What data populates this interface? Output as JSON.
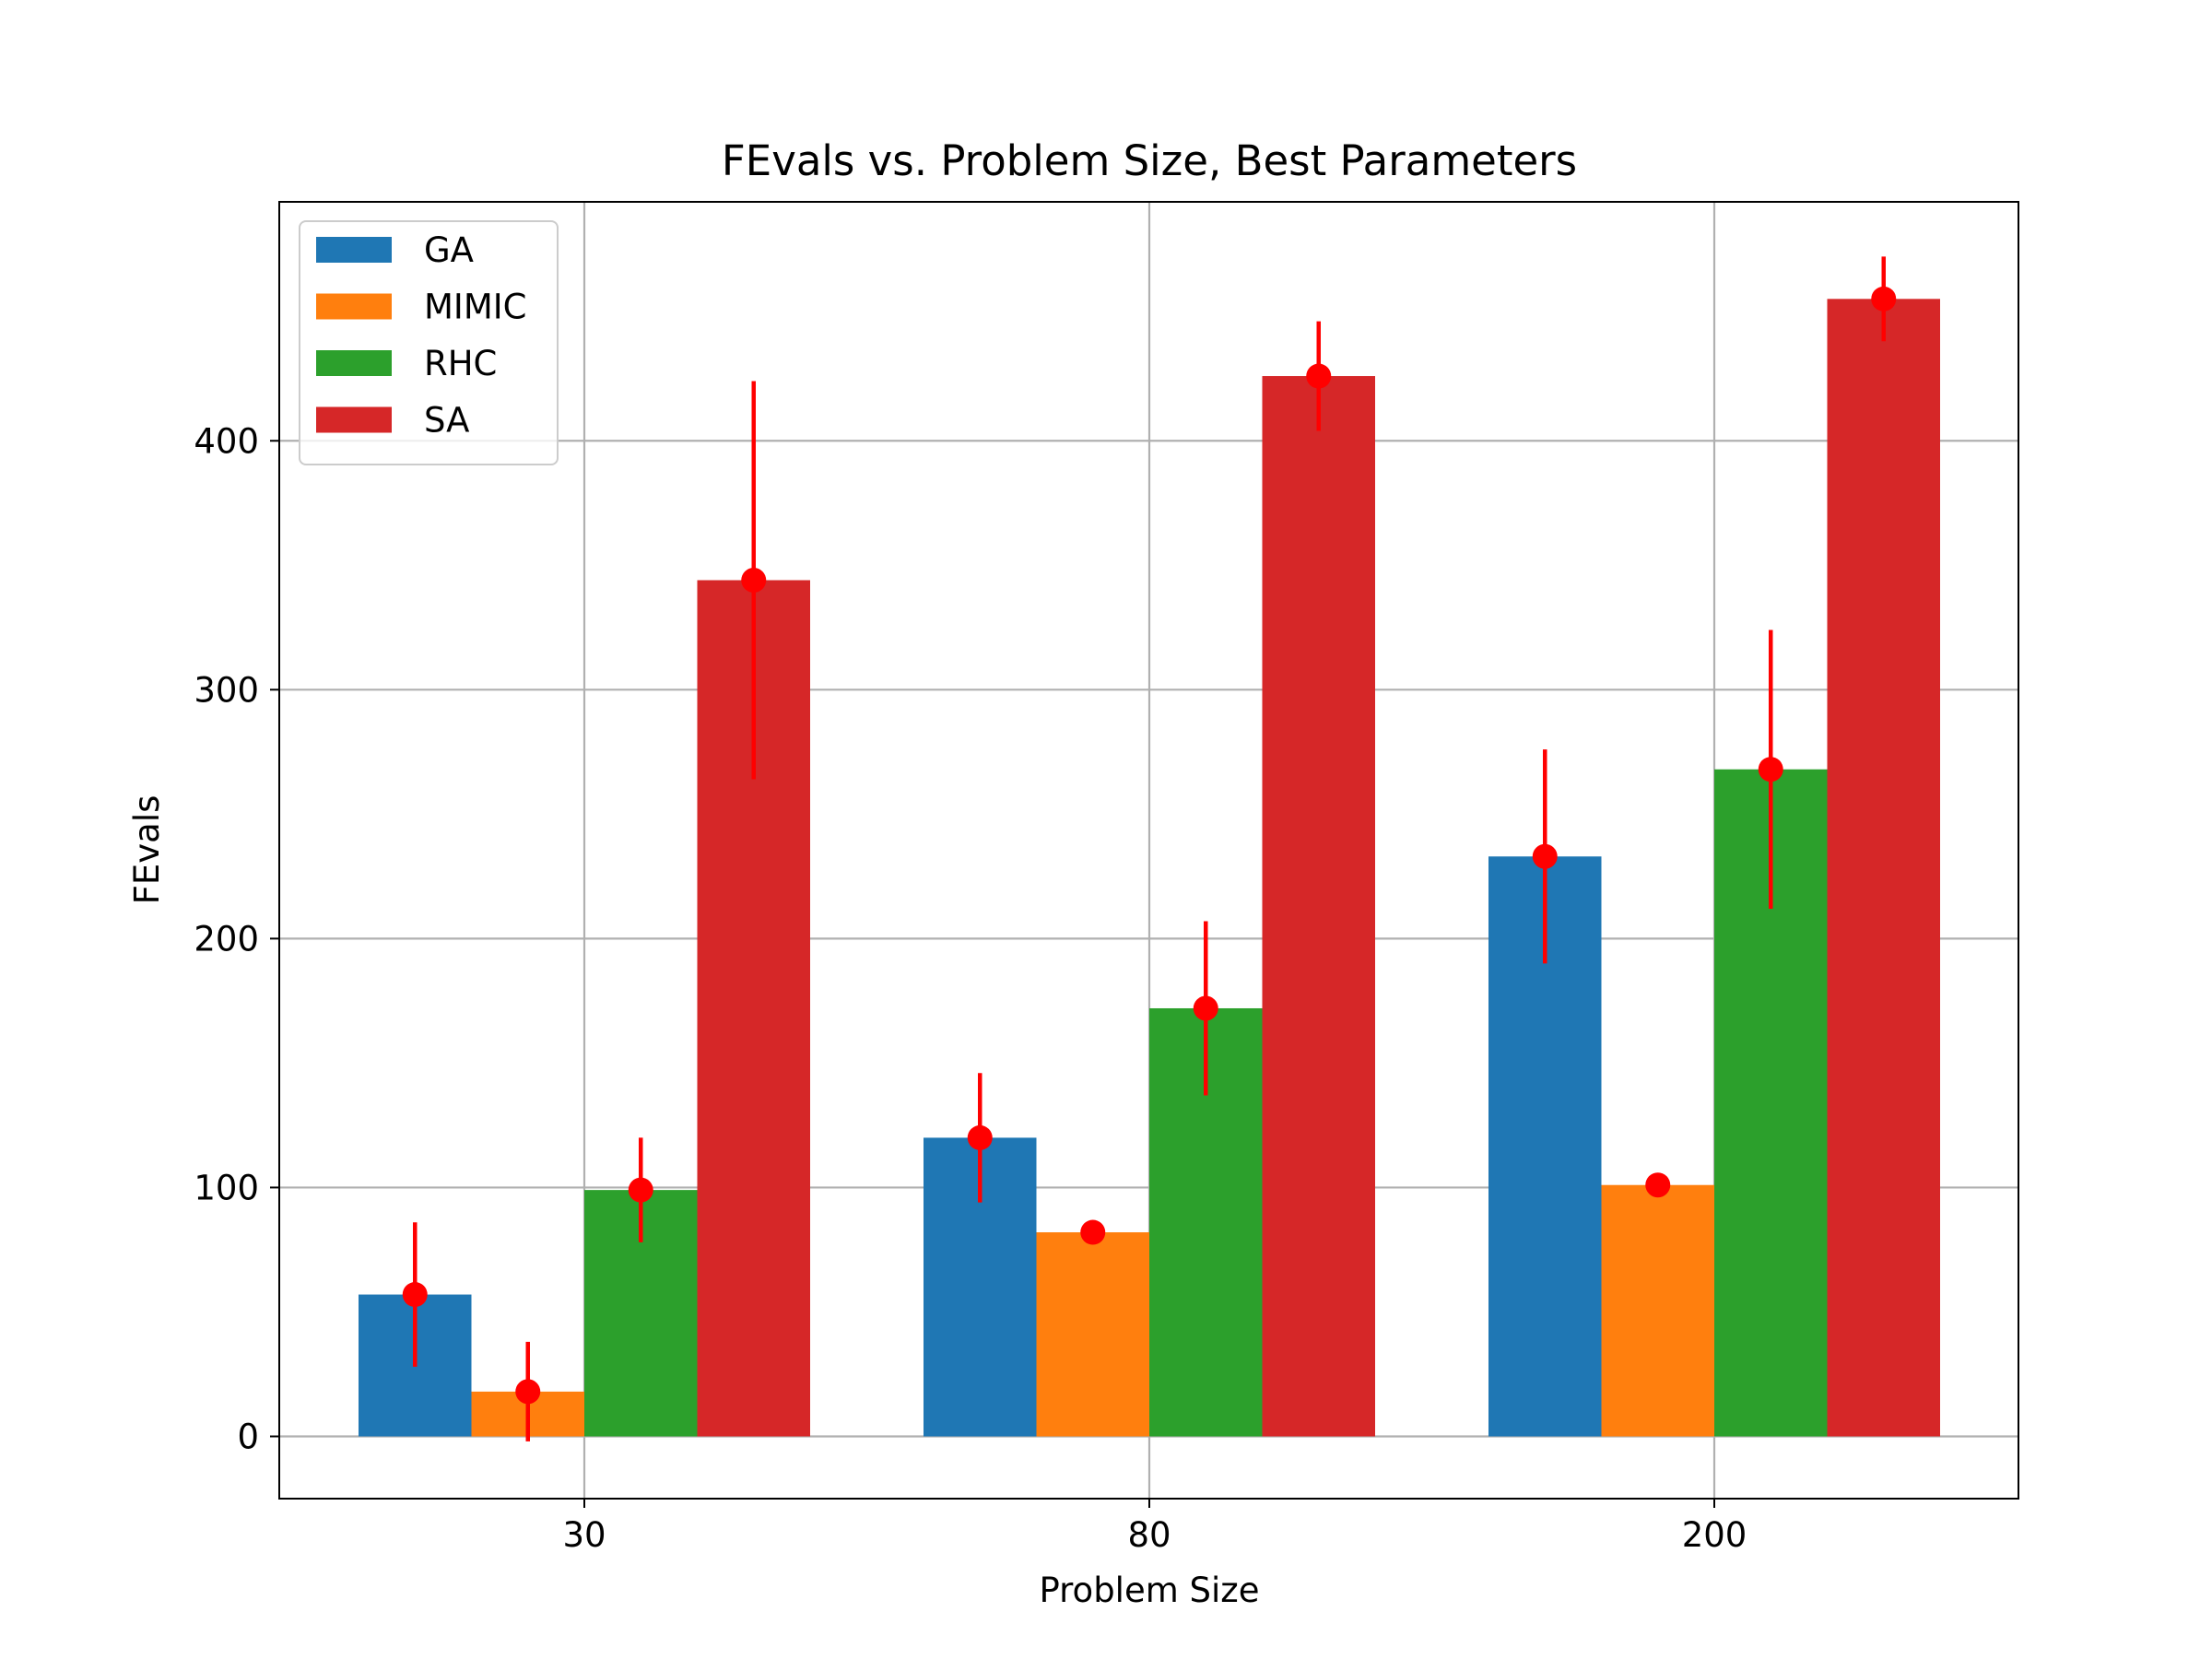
{
  "chart_data": {
    "type": "bar",
    "title": "FEvals vs. Problem Size, Best Parameters",
    "xlabel": "Problem Size",
    "ylabel": "FEvals",
    "categories": [
      "30",
      "80",
      "200"
    ],
    "ylim": [
      -25,
      496
    ],
    "yticks": [
      0,
      100,
      200,
      300,
      400
    ],
    "grid": true,
    "legend_position": "top-left",
    "error_bar_color": "#ff0000",
    "series": [
      {
        "name": "GA",
        "color": "#1f77b4",
        "values": [
          57,
          120,
          233
        ],
        "errors": [
          29,
          26,
          43
        ]
      },
      {
        "name": "MIMIC",
        "color": "#ff7f0e",
        "values": [
          18,
          82,
          101
        ],
        "errors": [
          20,
          0,
          0
        ]
      },
      {
        "name": "RHC",
        "color": "#2ca02c",
        "values": [
          99,
          172,
          268
        ],
        "errors": [
          21,
          35,
          56
        ]
      },
      {
        "name": "SA",
        "color": "#d62728",
        "values": [
          344,
          426,
          457
        ],
        "errors": [
          80,
          22,
          17
        ]
      }
    ]
  }
}
